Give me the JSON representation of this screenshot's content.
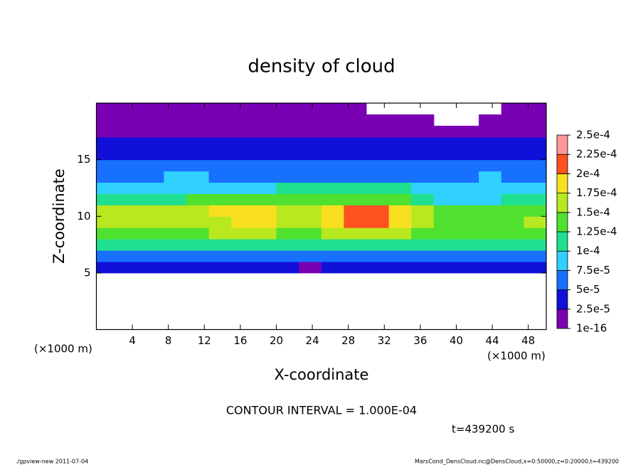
{
  "chart_data": {
    "type": "heatmap",
    "title": "density of cloud",
    "x_label": "X-coordinate",
    "y_label": "Z-coordinate",
    "x_unit_left": "(×1000 m)",
    "x_unit_right": "(×1000 m)",
    "contour_note": "CONTOUR INTERVAL = 1.000E-04",
    "time_note": "t=439200 s",
    "footer_left": "./gpview-new  2011-07-04",
    "footer_right": "MarsCond_DensCloud.nc@DensCloud,x=0:50000,z=0:20000,t=439200",
    "xlim": [
      0,
      50
    ],
    "ylim": [
      0,
      20
    ],
    "xticks": [
      4,
      8,
      12,
      16,
      20,
      24,
      28,
      32,
      36,
      40,
      44,
      48
    ],
    "yticks": [
      5,
      10,
      15
    ],
    "x": [
      1.25,
      3.75,
      6.25,
      8.75,
      11.25,
      13.75,
      16.25,
      18.75,
      21.25,
      23.75,
      26.25,
      28.75,
      31.25,
      33.75,
      36.25,
      38.75,
      41.25,
      43.75,
      46.25,
      48.75
    ],
    "z": [
      5.5,
      6.5,
      7.5,
      8.5,
      9.5,
      10.5,
      11.5,
      12.5,
      13.5,
      14.5,
      15.5,
      16.5,
      17.5,
      18.5,
      19.5
    ],
    "values": [
      [
        3e-05,
        3e-05,
        3e-05,
        3e-05,
        3e-05,
        3e-05,
        3e-05,
        3e-05,
        3e-05,
        1e-05,
        3e-05,
        3e-05,
        3e-05,
        3e-05,
        3e-05,
        3e-05,
        3e-05,
        3e-05,
        3e-05,
        3e-05
      ],
      [
        7e-05,
        7e-05,
        7e-05,
        7e-05,
        7e-05,
        7e-05,
        7e-05,
        7e-05,
        7e-05,
        5e-05,
        7e-05,
        7e-05,
        7e-05,
        7e-05,
        7e-05,
        6e-05,
        7e-05,
        7e-05,
        7e-05,
        7e-05
      ],
      [
        0.00011,
        0.00011,
        0.00011,
        0.00011,
        0.00011,
        0.00011,
        0.00011,
        0.00011,
        0.00011,
        0.00011,
        0.00011,
        0.00011,
        0.00011,
        0.00011,
        0.00011,
        0.00011,
        0.00011,
        0.00011,
        0.00011,
        0.00011
      ],
      [
        0.00014,
        0.00014,
        0.00014,
        0.00014,
        0.00014,
        0.00015,
        0.00015,
        0.00015,
        0.00014,
        0.00014,
        0.00016,
        0.00016,
        0.00016,
        0.00016,
        0.00014,
        0.00014,
        0.00014,
        0.00014,
        0.00014,
        0.00014
      ],
      [
        0.00015,
        0.00015,
        0.00015,
        0.00015,
        0.00017,
        0.00017,
        0.00018,
        0.00018,
        0.00017,
        0.00015,
        0.00019,
        0.0002,
        0.0002,
        0.00019,
        0.00017,
        0.00014,
        0.00014,
        0.00014,
        0.00014,
        0.00015
      ],
      [
        0.00015,
        0.00015,
        0.00015,
        0.00015,
        0.00016,
        0.00018,
        0.00018,
        0.00018,
        0.00016,
        0.00015,
        0.00018,
        0.0002,
        0.0002,
        0.00018,
        0.00015,
        0.00013,
        0.00013,
        0.00013,
        0.00013,
        0.00013
      ],
      [
        0.00011,
        0.00011,
        0.00011,
        0.00011,
        0.00013,
        0.00013,
        0.00013,
        0.00013,
        0.00014,
        0.00014,
        0.00014,
        0.00014,
        0.00014,
        0.00014,
        0.00011,
        9e-05,
        9e-05,
        9e-05,
        0.0001,
        0.0001
      ],
      [
        8e-05,
        8e-05,
        8e-05,
        8e-05,
        9e-05,
        9e-05,
        9e-05,
        9e-05,
        0.000105,
        0.000105,
        0.000105,
        0.000105,
        0.000105,
        0.000105,
        8e-05,
        8e-05,
        8e-05,
        8e-05,
        8e-05,
        8e-05
      ],
      [
        6e-05,
        6e-05,
        6e-05,
        8e-05,
        8e-05,
        6e-05,
        6e-05,
        6e-05,
        6e-05,
        6e-05,
        6e-05,
        6e-05,
        6e-05,
        6e-05,
        6e-05,
        6e-05,
        6e-05,
        8e-05,
        6e-05,
        6e-05
      ],
      [
        5e-05,
        5e-05,
        5e-05,
        6e-05,
        6e-05,
        5e-05,
        5e-05,
        5e-05,
        5e-05,
        5e-05,
        5e-05,
        5e-05,
        5e-05,
        5e-05,
        5e-05,
        5e-05,
        5e-05,
        5e-05,
        5e-05,
        5e-05
      ],
      [
        4e-05,
        4e-05,
        4e-05,
        4e-05,
        4e-05,
        4e-05,
        4e-05,
        4e-05,
        4e-05,
        4e-05,
        4e-05,
        4e-05,
        4e-05,
        4e-05,
        4e-05,
        4e-05,
        4e-05,
        4e-05,
        4e-05,
        4e-05
      ],
      [
        3e-05,
        3e-05,
        3e-05,
        3e-05,
        3e-05,
        3e-05,
        3e-05,
        3e-05,
        3e-05,
        3e-05,
        3e-05,
        3e-05,
        3e-05,
        3e-05,
        4e-05,
        4e-05,
        4e-05,
        4e-05,
        4e-05,
        4e-05
      ],
      [
        2e-05,
        2e-05,
        2e-05,
        2e-05,
        2e-05,
        2e-05,
        2e-05,
        2e-05,
        2e-05,
        2e-05,
        2e-05,
        2e-05,
        2e-05,
        2e-05,
        2e-05,
        2e-05,
        2e-05,
        2e-05,
        2e-05,
        2e-05
      ],
      [
        1e-05,
        1e-05,
        1e-05,
        1e-05,
        1e-05,
        1e-05,
        1e-05,
        1e-05,
        1e-05,
        1e-05,
        1e-05,
        1e-05,
        1e-05,
        1e-05,
        1e-05,
        null,
        null,
        1e-05,
        1e-05,
        1e-05
      ],
      [
        1e-05,
        1e-05,
        1e-05,
        1e-05,
        1e-05,
        1e-05,
        1e-05,
        1e-05,
        1e-05,
        1e-05,
        1e-05,
        1e-05,
        null,
        null,
        null,
        null,
        null,
        null,
        1e-05,
        1e-05
      ]
    ],
    "levels": [
      {
        "value": 1e-16,
        "label": "1e-16"
      },
      {
        "value": 2.5e-05,
        "label": "2.5e-5"
      },
      {
        "value": 5e-05,
        "label": "5e-5"
      },
      {
        "value": 7.5e-05,
        "label": "7.5e-5"
      },
      {
        "value": 0.0001,
        "label": "1e-4"
      },
      {
        "value": 0.000125,
        "label": "1.25e-4"
      },
      {
        "value": 0.00015,
        "label": "1.5e-4"
      },
      {
        "value": 0.000175,
        "label": "1.75e-4"
      },
      {
        "value": 0.0002,
        "label": "2e-4"
      },
      {
        "value": 0.000225,
        "label": "2.25e-4"
      },
      {
        "value": 0.00025,
        "label": "2.5e-4"
      }
    ],
    "colors": [
      "#7a00b4",
      "#1010d8",
      "#1870ff",
      "#30d0ff",
      "#20e090",
      "#50e030",
      "#b8e820",
      "#f8e020",
      "#ff5020",
      "#ff9898"
    ]
  }
}
